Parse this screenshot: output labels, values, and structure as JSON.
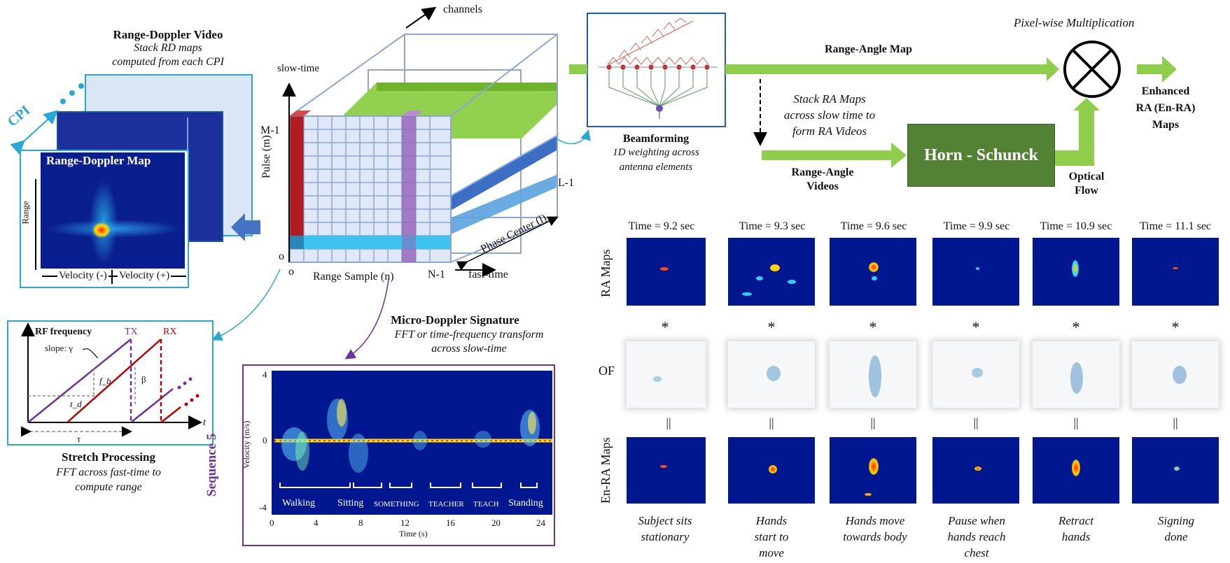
{
  "rd_video": {
    "title": "Range-Doppler Video",
    "subtitle_line1": "Stack RD maps",
    "subtitle_line2": "computed from each CPI",
    "cpi": "CPI",
    "map_title": "Range-Doppler Map",
    "range_label": "Range",
    "vel_neg": "Velocity (-)",
    "vel_pos": "Velocity (+)"
  },
  "cube": {
    "channels": "channels",
    "slow_time": "slow-time",
    "m1": "M-1",
    "pulse": "Pulse (m)",
    "o1": "o",
    "o2": "o",
    "range_sample": "Range Sample (n)",
    "n1": "N-1",
    "fast_time": "fast-time",
    "phase_center": "Phase Center (l)",
    "l1": "L-1"
  },
  "beamforming": {
    "title": "Beamforming",
    "line1": "1D weighting across",
    "line2": "antenna elements"
  },
  "flow": {
    "ra_map": "Range-Angle Map",
    "stack_line1": "Stack RA Maps",
    "stack_line2": "across slow time to",
    "stack_line3": "form RA Videos",
    "ra_videos_line1": "Range-Angle",
    "ra_videos_line2": "Videos",
    "horn": "Horn - Schunck",
    "of_line1": "Optical",
    "of_line2": "Flow",
    "pixelwise": "Pixel-wise Multiplication",
    "enh_line1": "Enhanced",
    "enh_line2": "RA (En-RA)",
    "enh_line3": "Maps"
  },
  "stretch": {
    "rf": "RF frequency",
    "tx": "TX",
    "rx": "RX",
    "slope": "slope: γ",
    "fb": "f_b",
    "beta": "β",
    "td": "t_d",
    "t": "t",
    "tau": "τ",
    "title": "Stretch Processing",
    "line1": "FFT across fast-time to",
    "line2": "compute range"
  },
  "micro": {
    "title": "Micro-Doppler Signature",
    "line1": "FFT or time-frequency transform",
    "line2": "across slow-time",
    "sequence": "Sequence 5",
    "ylabel": "Velocity (m/s)",
    "xlabel": "Time (s)",
    "yticks": [
      "4",
      "0",
      "-4"
    ],
    "xticks": [
      "0",
      "4",
      "8",
      "12",
      "16",
      "20",
      "24"
    ],
    "activities": [
      "Walking",
      "Sitting",
      "SOMETHING",
      "TEACHER",
      "TEACH",
      "Standing"
    ]
  },
  "grid": {
    "row_ra": "RA Maps",
    "row_of": "OF",
    "row_en": "En-RA Maps",
    "star": "*",
    "equals": "||",
    "times": [
      "Time = 9.2 sec",
      "Time = 9.3 sec",
      "Time = 9.6 sec",
      "Time = 9.9 sec",
      "Time = 10.9 sec",
      "Time = 11.1 sec"
    ],
    "captions": [
      [
        "Subject sits",
        "stationary",
        ""
      ],
      [
        "Hands",
        "start to",
        "move"
      ],
      [
        "Hands move",
        "towards body",
        ""
      ],
      [
        "Pause when",
        "hands reach",
        "chest"
      ],
      [
        "Retract",
        "hands",
        ""
      ],
      [
        "Signing",
        "done",
        ""
      ]
    ]
  },
  "colors": {
    "green_arrow": "#8fce4a",
    "horn_box": "#548235",
    "cyan_border": "#29a8d6",
    "purple": "#7030a0",
    "blue_arrow": "#4472c4",
    "heatmap_bg": "#00178f"
  }
}
